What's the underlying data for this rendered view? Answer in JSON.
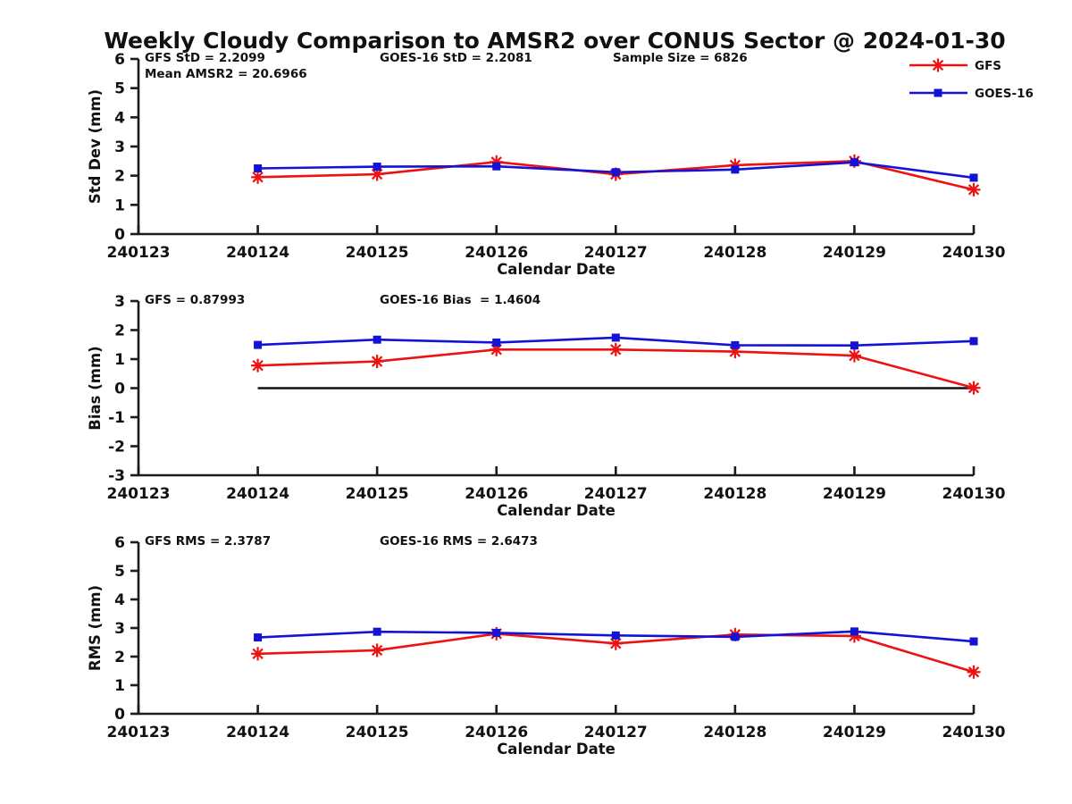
{
  "title": "Weekly Cloudy Comparison to AMSR2 over CONUS Sector @ 2024-01-30",
  "colors": {
    "gfs": "#ee1111",
    "goes16": "#1313d8",
    "axis": "#1b1b1b",
    "zero_line": "#111111"
  },
  "legend": {
    "position": "top-right",
    "items": [
      {
        "label": "GFS",
        "color_key": "gfs",
        "marker": "asterisk"
      },
      {
        "label": "GOES-16",
        "color_key": "goes16",
        "marker": "square"
      }
    ]
  },
  "x_axis": {
    "label": "Calendar Date",
    "tick_labels": [
      "240123",
      "240124",
      "240125",
      "240126",
      "240127",
      "240128",
      "240129",
      "240130"
    ]
  },
  "chart_data": [
    {
      "type": "line",
      "name": "std-dev-panel",
      "ylabel": "Std Dev (mm)",
      "xlabel": "Calendar Date",
      "ylim": [
        0,
        6
      ],
      "yticks": [
        0,
        1,
        2,
        3,
        4,
        5,
        6
      ],
      "grid": false,
      "x": [
        "240124",
        "240125",
        "240126",
        "240127",
        "240128",
        "240129",
        "240130"
      ],
      "series": [
        {
          "name": "GFS",
          "color_key": "gfs",
          "marker": "asterisk",
          "values": [
            1.95,
            2.05,
            2.47,
            2.05,
            2.36,
            2.5,
            1.52
          ]
        },
        {
          "name": "GOES-16",
          "color_key": "goes16",
          "marker": "square",
          "values": [
            2.25,
            2.31,
            2.32,
            2.12,
            2.21,
            2.46,
            1.93
          ]
        }
      ],
      "zero_line": false,
      "annotations": [
        {
          "text": "GFS StD = 2.2099",
          "col": 0,
          "row": 0
        },
        {
          "text": "Mean AMSR2 = 20.6966",
          "col": 0,
          "row": 1
        },
        {
          "text": "GOES-16 StD = 2.2081",
          "col": 1,
          "row": 0
        },
        {
          "text": "Sample Size = 6826",
          "col": 2,
          "row": 0
        }
      ]
    },
    {
      "type": "line",
      "name": "bias-panel",
      "ylabel": "Bias (mm)",
      "xlabel": "Calendar Date",
      "ylim": [
        -3,
        3
      ],
      "yticks": [
        -3,
        -2,
        -1,
        0,
        1,
        2,
        3
      ],
      "grid": false,
      "x": [
        "240124",
        "240125",
        "240126",
        "240127",
        "240128",
        "240129",
        "240130"
      ],
      "series": [
        {
          "name": "GFS",
          "color_key": "gfs",
          "marker": "asterisk",
          "values": [
            0.78,
            0.92,
            1.33,
            1.33,
            1.26,
            1.12,
            0.01
          ]
        },
        {
          "name": "GOES-16",
          "color_key": "goes16",
          "marker": "square",
          "values": [
            1.49,
            1.67,
            1.57,
            1.74,
            1.48,
            1.47,
            1.62
          ]
        }
      ],
      "zero_line": true,
      "annotations": [
        {
          "text": "GFS = 0.87993",
          "col": 0,
          "row": 0
        },
        {
          "text": "GOES-16 Bias  = 1.4604",
          "col": 1,
          "row": 0
        }
      ]
    },
    {
      "type": "line",
      "name": "rms-panel",
      "ylabel": "RMS (mm)",
      "xlabel": "Calendar Date",
      "ylim": [
        0,
        6
      ],
      "yticks": [
        0,
        1,
        2,
        3,
        4,
        5,
        6
      ],
      "grid": false,
      "x": [
        "240124",
        "240125",
        "240126",
        "240127",
        "240128",
        "240129",
        "240130"
      ],
      "series": [
        {
          "name": "GFS",
          "color_key": "gfs",
          "marker": "asterisk",
          "values": [
            2.1,
            2.22,
            2.8,
            2.46,
            2.77,
            2.72,
            1.46
          ]
        },
        {
          "name": "GOES-16",
          "color_key": "goes16",
          "marker": "square",
          "values": [
            2.67,
            2.87,
            2.83,
            2.74,
            2.69,
            2.88,
            2.53
          ]
        }
      ],
      "zero_line": false,
      "annotations": [
        {
          "text": "GFS RMS = 2.3787",
          "col": 0,
          "row": 0
        },
        {
          "text": "GOES-16 RMS = 2.6473",
          "col": 1,
          "row": 0
        }
      ]
    }
  ]
}
